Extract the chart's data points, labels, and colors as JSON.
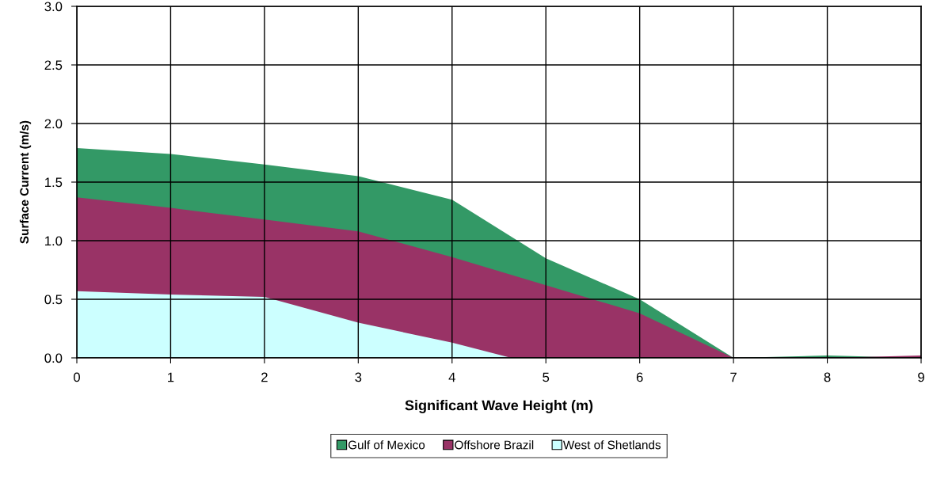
{
  "chart_data": {
    "type": "area",
    "xlabel": "Significant Wave Height (m)",
    "ylabel": "Surface Current (m/s)",
    "x": [
      0,
      1,
      2,
      3,
      4,
      5,
      6,
      7,
      8,
      9
    ],
    "series": [
      {
        "name": "Gulf of Mexico",
        "color": "#339966",
        "values": [
          1.79,
          1.74,
          1.65,
          1.55,
          1.35,
          0.85,
          0.5,
          0,
          0.02,
          0
        ]
      },
      {
        "name": "Offshore Brazil",
        "color": "#993366",
        "values": [
          1.37,
          1.28,
          1.18,
          1.08,
          0.86,
          0.62,
          0.38,
          0,
          0,
          0.02
        ]
      },
      {
        "name": "West of Shetlands",
        "color": "#ccffff",
        "x": [
          0,
          1,
          2,
          3,
          4,
          4.63
        ],
        "values": [
          0.57,
          0.54,
          0.52,
          0.3,
          0.13,
          0
        ]
      }
    ],
    "xlim": [
      0,
      9
    ],
    "xticks": [
      0,
      1,
      2,
      3,
      4,
      5,
      6,
      7,
      8,
      9
    ],
    "ylim": [
      0,
      3.0
    ],
    "yticks": [
      {
        "value": 0,
        "label": "0.0"
      },
      {
        "value": 0.5,
        "label": "0.5"
      },
      {
        "value": 1.0,
        "label": "1.0"
      },
      {
        "value": 1.5,
        "label": "1.5"
      },
      {
        "value": 2.0,
        "label": "2.0"
      },
      {
        "value": 2.5,
        "label": "2.5"
      },
      {
        "value": 3.0,
        "label": "3.0"
      }
    ],
    "grid": true,
    "legend": "bottom"
  }
}
